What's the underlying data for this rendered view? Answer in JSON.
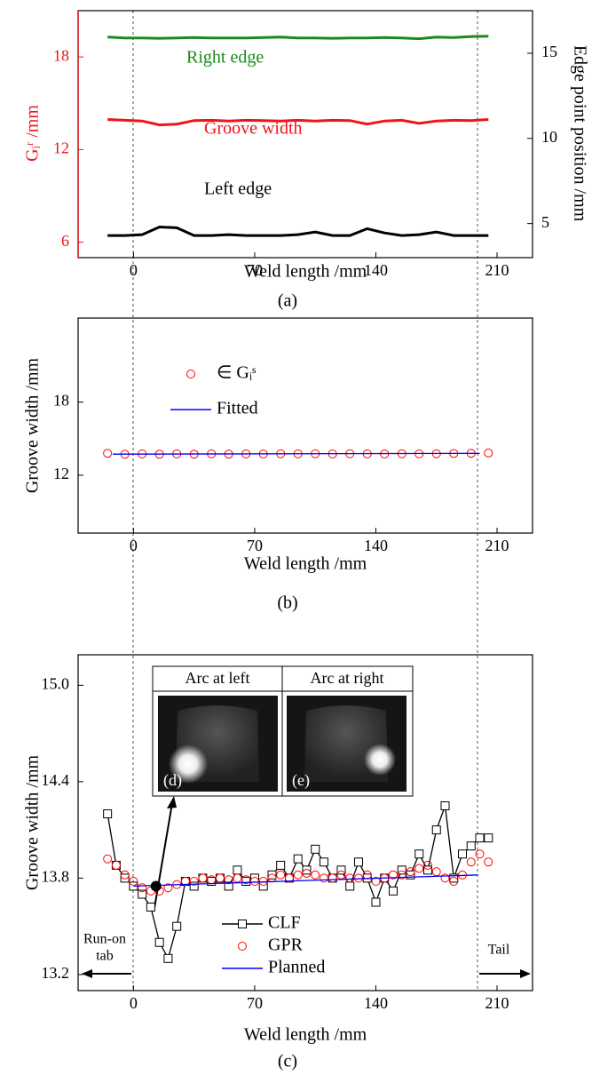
{
  "chart_data": [
    {
      "type": "line",
      "caption": "(a)",
      "xlabel": "Weld length /mm",
      "ylabel": "Gᵢʳ /mm",
      "ylabel_color": "#e8141a",
      "y2label": "Edge point position /mm",
      "xlim": [
        -32,
        230.5
      ],
      "xticks": [
        0,
        70,
        140,
        210
      ],
      "ylim": [
        5,
        21
      ],
      "yticks": [
        6,
        12,
        18
      ],
      "y2lim": [
        3,
        17.5
      ],
      "y2ticks": [
        5,
        10,
        15
      ],
      "series": [
        {
          "name": "Right edge",
          "color": "#1a8a1a",
          "axis": "y2",
          "marker": "none",
          "line": true,
          "x": [
            -15,
            -5,
            5,
            15,
            25,
            35,
            45,
            55,
            65,
            75,
            85,
            95,
            105,
            115,
            125,
            135,
            145,
            155,
            165,
            175,
            185,
            195,
            205
          ],
          "values": [
            15.95,
            15.9,
            15.9,
            15.88,
            15.9,
            15.92,
            15.9,
            15.9,
            15.9,
            15.92,
            15.95,
            15.9,
            15.9,
            15.88,
            15.9,
            15.9,
            15.92,
            15.9,
            15.85,
            15.95,
            15.92,
            15.98,
            16.0
          ]
        },
        {
          "name": "Groove width",
          "color": "#f0141a",
          "marker": "none",
          "line": true,
          "x": [
            -15,
            -5,
            5,
            15,
            25,
            35,
            45,
            55,
            65,
            75,
            85,
            95,
            105,
            115,
            125,
            135,
            145,
            155,
            165,
            175,
            185,
            195,
            205
          ],
          "values": [
            13.95,
            13.9,
            13.85,
            13.6,
            13.65,
            13.88,
            13.9,
            13.85,
            13.9,
            13.88,
            13.85,
            13.9,
            13.85,
            13.9,
            13.88,
            13.65,
            13.85,
            13.9,
            13.7,
            13.85,
            13.9,
            13.88,
            13.95
          ]
        },
        {
          "name": "Left edge",
          "color": "#000000",
          "axis": "y2",
          "marker": "none",
          "line": true,
          "x": [
            -15,
            -5,
            5,
            15,
            25,
            35,
            45,
            55,
            65,
            75,
            85,
            95,
            105,
            115,
            125,
            135,
            145,
            155,
            165,
            175,
            185,
            195,
            205
          ],
          "values": [
            4.3,
            4.3,
            4.35,
            4.8,
            4.75,
            4.3,
            4.3,
            4.35,
            4.3,
            4.3,
            4.3,
            4.35,
            4.5,
            4.3,
            4.3,
            4.7,
            4.45,
            4.3,
            4.35,
            4.5,
            4.3,
            4.3,
            4.3
          ]
        }
      ]
    },
    {
      "type": "line",
      "caption": "(b)",
      "xlabel": "Weld length /mm",
      "ylabel": "Groove width /mm",
      "legend": "upper left",
      "xlim": [
        -32,
        230.5
      ],
      "xticks": [
        0,
        70,
        140,
        210
      ],
      "ylim": [
        7.25,
        24.9
      ],
      "yticks": [
        12,
        18
      ],
      "series": [
        {
          "name": "∈ Gᵢˢ",
          "color": "#ff0000",
          "marker": "circle",
          "line": false,
          "x": [
            -15,
            -5,
            5,
            15,
            25,
            35,
            45,
            55,
            65,
            75,
            85,
            95,
            105,
            115,
            125,
            135,
            145,
            155,
            165,
            175,
            185,
            195,
            205
          ],
          "values": [
            13.8,
            13.72,
            13.75,
            13.72,
            13.75,
            13.72,
            13.75,
            13.73,
            13.75,
            13.74,
            13.76,
            13.75,
            13.76,
            13.74,
            13.76,
            13.75,
            13.74,
            13.76,
            13.75,
            13.76,
            13.78,
            13.8,
            13.82
          ]
        },
        {
          "name": "Fitted",
          "color": "#0000ff",
          "marker": "none",
          "line": true,
          "x": [
            -12,
            200
          ],
          "values": [
            13.73,
            13.79
          ]
        }
      ]
    },
    {
      "type": "line",
      "caption": "(c)",
      "xlabel": "Weld length /mm",
      "ylabel": "Groove width /mm",
      "legend": "lower center",
      "xlim": [
        -32,
        230.5
      ],
      "xticks": [
        0,
        70,
        140,
        210
      ],
      "ylim": [
        13.1,
        15.19
      ],
      "yticks": [
        {
          "value": 13.2,
          "label": "13.2"
        },
        13.8,
        14.4,
        {
          "value": 15,
          "label": "15.0"
        }
      ],
      "series": [
        {
          "name": "CLF",
          "color": "#000000",
          "marker": "square",
          "line": true,
          "x": [
            -15,
            -10,
            -5,
            0,
            5,
            10,
            15,
            20,
            25,
            30,
            35,
            40,
            45,
            50,
            55,
            60,
            65,
            70,
            75,
            80,
            85,
            90,
            95,
            100,
            105,
            110,
            115,
            120,
            125,
            130,
            135,
            140,
            145,
            150,
            155,
            160,
            165,
            170,
            175,
            180,
            185,
            190,
            195,
            200,
            205
          ],
          "values": [
            14.2,
            13.88,
            13.8,
            13.75,
            13.7,
            13.62,
            13.4,
            13.3,
            13.5,
            13.78,
            13.75,
            13.8,
            13.78,
            13.8,
            13.75,
            13.85,
            13.78,
            13.8,
            13.75,
            13.82,
            13.88,
            13.8,
            13.92,
            13.85,
            13.98,
            13.9,
            13.8,
            13.85,
            13.75,
            13.9,
            13.8,
            13.65,
            13.8,
            13.72,
            13.85,
            13.82,
            13.95,
            13.85,
            14.1,
            14.25,
            13.8,
            13.95,
            14.0,
            14.05,
            14.05
          ]
        },
        {
          "name": "GPR",
          "color": "#ff0000",
          "marker": "circle",
          "line": false,
          "x": [
            -15,
            -10,
            -5,
            0,
            5,
            10,
            15,
            20,
            25,
            30,
            35,
            40,
            45,
            50,
            55,
            60,
            65,
            70,
            75,
            80,
            85,
            90,
            95,
            100,
            105,
            110,
            115,
            120,
            125,
            130,
            135,
            140,
            145,
            150,
            155,
            160,
            165,
            170,
            175,
            180,
            185,
            190,
            195,
            200,
            205
          ],
          "values": [
            13.92,
            13.88,
            13.82,
            13.78,
            13.74,
            13.72,
            13.72,
            13.74,
            13.76,
            13.78,
            13.78,
            13.8,
            13.79,
            13.8,
            13.79,
            13.8,
            13.79,
            13.78,
            13.78,
            13.8,
            13.82,
            13.8,
            13.82,
            13.83,
            13.82,
            13.8,
            13.8,
            13.82,
            13.8,
            13.8,
            13.82,
            13.78,
            13.8,
            13.82,
            13.82,
            13.84,
            13.86,
            13.88,
            13.84,
            13.8,
            13.78,
            13.82,
            13.9,
            13.95,
            13.9
          ]
        },
        {
          "name": "Planned",
          "color": "#0000ff",
          "marker": "none",
          "line": true,
          "x": [
            0,
            199
          ],
          "values": [
            13.75,
            13.82
          ]
        }
      ],
      "highlight": {
        "x": 13,
        "y": 13.75
      },
      "inset": {
        "headers": [
          "Arc at left",
          "Arc at right"
        ],
        "labels": [
          "(d)",
          "(e)"
        ]
      },
      "annotations": [
        "Run-on",
        "tab",
        "Tail"
      ]
    }
  ]
}
